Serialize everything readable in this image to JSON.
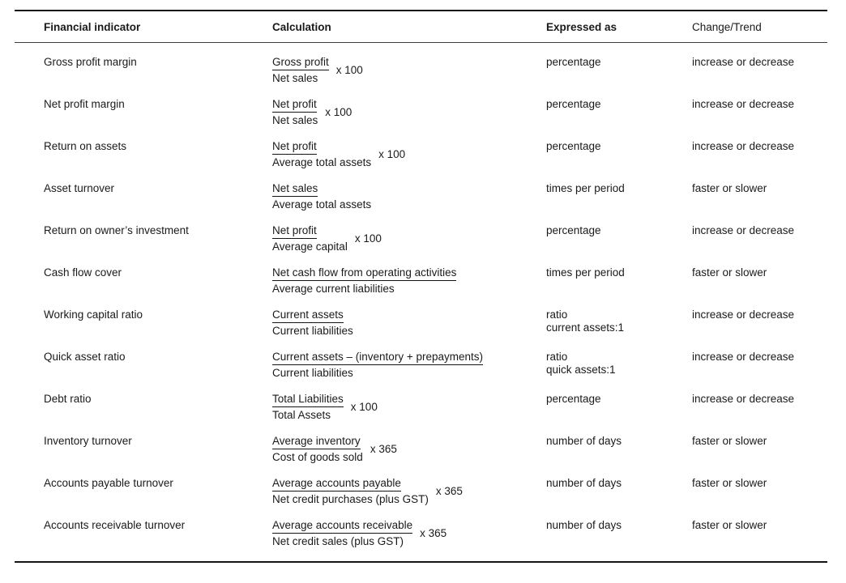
{
  "page": {
    "background_color": "#ffffff",
    "text_color": "#1a1a1a",
    "rule_color": "#141414"
  },
  "table": {
    "headers": [
      "Financial indicator",
      "Calculation",
      "Expressed as",
      "Change/Trend"
    ],
    "rows": [
      {
        "indicator": "Gross profit margin",
        "calculation": {
          "numerator": "Gross profit",
          "denominator": "Net sales",
          "multiplier": "x 100"
        },
        "expressed_as": "percentage",
        "expressed_as_line2": "",
        "trend": "increase or decrease"
      },
      {
        "indicator": "Net profit margin",
        "calculation": {
          "numerator": "Net profit",
          "denominator": "Net sales",
          "multiplier": "x 100"
        },
        "expressed_as": "percentage",
        "expressed_as_line2": "",
        "trend": "increase or decrease"
      },
      {
        "indicator": "Return on assets",
        "calculation": {
          "numerator": "Net profit",
          "denominator": "Average total assets",
          "multiplier": "x 100"
        },
        "expressed_as": "percentage",
        "expressed_as_line2": "",
        "trend": "increase or decrease"
      },
      {
        "indicator": "Asset turnover",
        "calculation": {
          "numerator": "Net sales",
          "denominator": "Average total assets",
          "multiplier": ""
        },
        "expressed_as": "times per period",
        "expressed_as_line2": "",
        "trend": "faster or slower"
      },
      {
        "indicator": "Return on owner’s investment",
        "calculation": {
          "numerator": "Net profit",
          "denominator": "Average capital",
          "multiplier": "x 100"
        },
        "expressed_as": "percentage",
        "expressed_as_line2": "",
        "trend": "increase or decrease"
      },
      {
        "indicator": "Cash flow cover",
        "calculation": {
          "numerator": "Net cash flow from operating activities",
          "denominator": "Average current liabilities",
          "multiplier": ""
        },
        "expressed_as": "times per period",
        "expressed_as_line2": "",
        "trend": "faster or slower"
      },
      {
        "indicator": "Working capital ratio",
        "calculation": {
          "numerator": "Current assets",
          "denominator": "Current liabilities",
          "multiplier": ""
        },
        "expressed_as": "ratio",
        "expressed_as_line2": "current assets:1",
        "trend": "increase or decrease"
      },
      {
        "indicator": "Quick asset ratio",
        "calculation": {
          "numerator": "Current assets – (inventory + prepayments)",
          "denominator": "Current liabilities",
          "multiplier": ""
        },
        "expressed_as": "ratio",
        "expressed_as_line2": "quick assets:1",
        "trend": "increase or decrease"
      },
      {
        "indicator": "Debt ratio",
        "calculation": {
          "numerator": "Total Liabilities",
          "denominator": "Total Assets",
          "multiplier": "x 100"
        },
        "expressed_as": "percentage",
        "expressed_as_line2": "",
        "trend": "increase or decrease"
      },
      {
        "indicator": "Inventory turnover",
        "calculation": {
          "numerator": "Average inventory",
          "denominator": "Cost of goods sold",
          "multiplier": "x 365"
        },
        "expressed_as": "number of days",
        "expressed_as_line2": "",
        "trend": "faster or slower"
      },
      {
        "indicator": "Accounts payable turnover",
        "calculation": {
          "numerator": "Average accounts payable",
          "denominator": "Net credit purchases (plus GST)",
          "multiplier": "x 365"
        },
        "expressed_as": "number of days",
        "expressed_as_line2": "",
        "trend": "faster or slower"
      },
      {
        "indicator": "Accounts receivable turnover",
        "calculation": {
          "numerator": "Average accounts receivable",
          "denominator": "Net credit sales (plus GST)",
          "multiplier": "x 365"
        },
        "expressed_as": "number of days",
        "expressed_as_line2": "",
        "trend": "faster or slower"
      }
    ]
  }
}
